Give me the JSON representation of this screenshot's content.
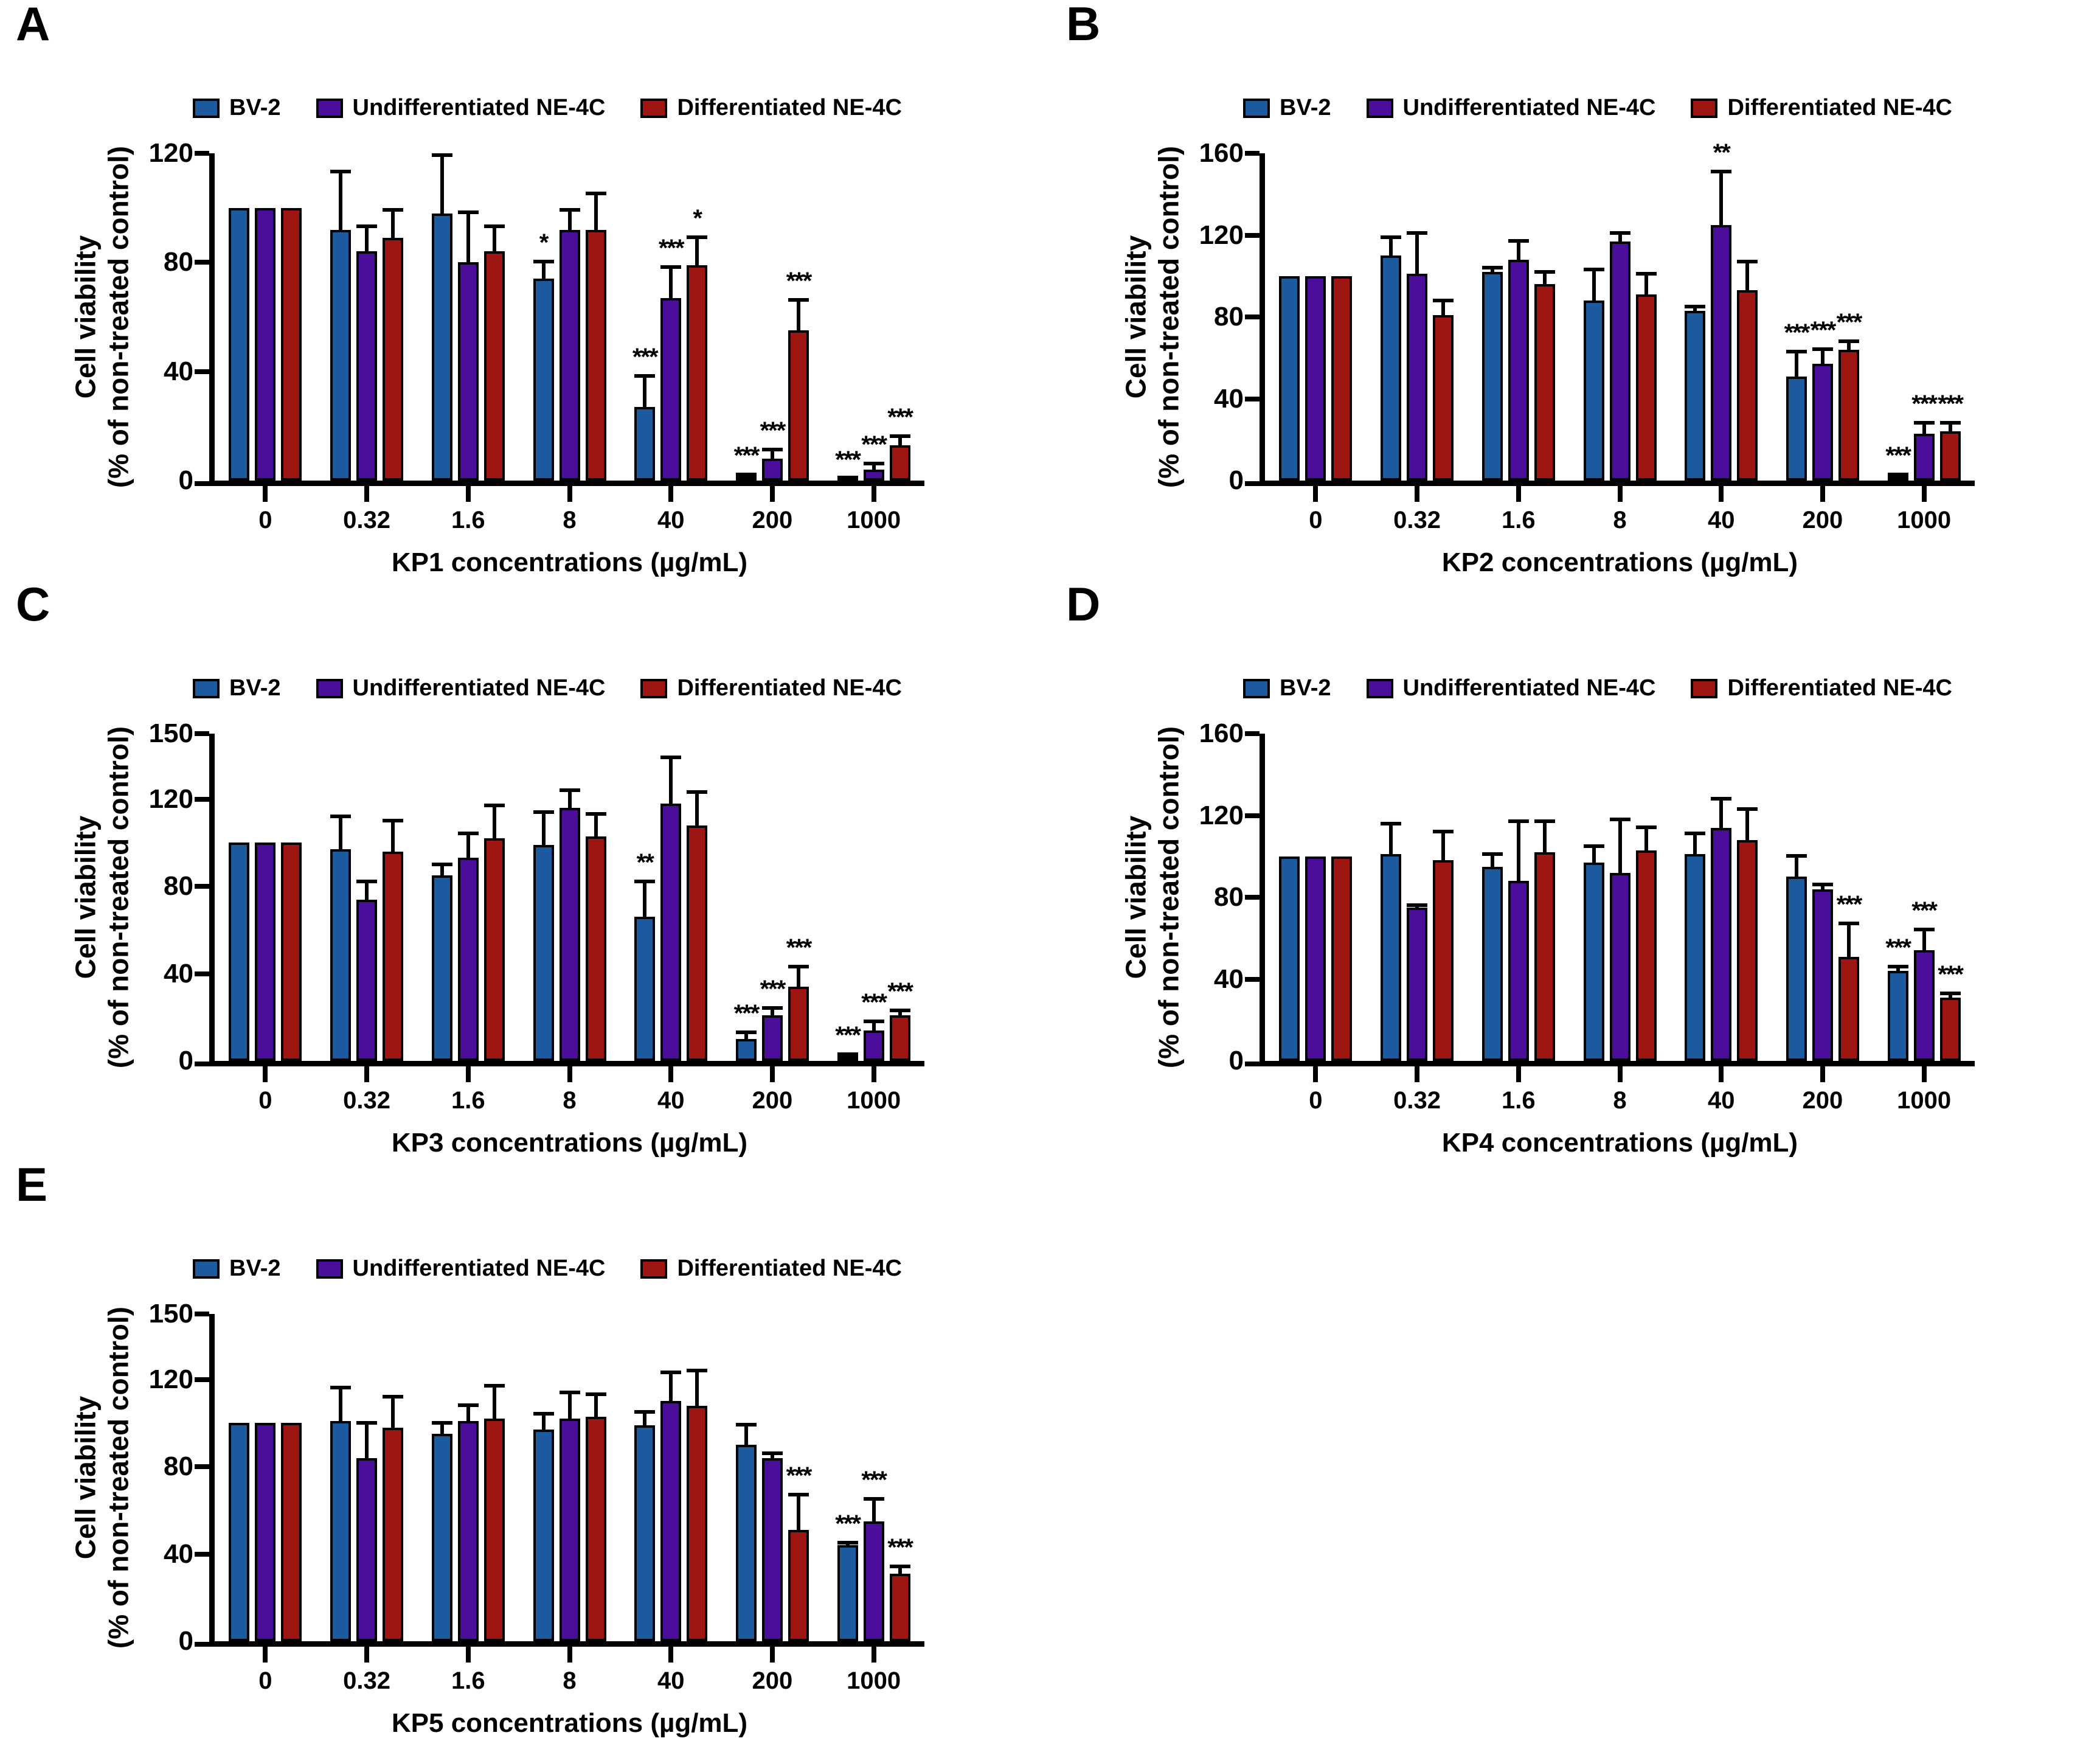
{
  "figure": {
    "background": "#ffffff",
    "text_color": "#000000",
    "bar_outline": "#000000"
  },
  "legend": {
    "position": "top",
    "items": [
      {
        "label": "BV-2",
        "color": "#1b5a9e"
      },
      {
        "label": "Undifferentiated NE-4C",
        "color": "#4a0e9b"
      },
      {
        "label": "Differentiated NE-4C",
        "color": "#9e1512"
      }
    ]
  },
  "ylabel": {
    "line1": "Cell viability",
    "line2": "(% of non-treated control)"
  },
  "chart_data": [
    {
      "letter": "A",
      "type": "bar",
      "xlabel": "KP1 concentrations (µg/mL)",
      "ylabel": "Cell viability (% of non-treated control)",
      "categories": [
        "0",
        "0.32",
        "1.6",
        "8",
        "40",
        "200",
        "1000"
      ],
      "ylim": [
        0,
        120
      ],
      "yticks": [
        0,
        40,
        80,
        120
      ],
      "grid": false,
      "series": [
        {
          "name": "BV-2",
          "color": "#1b5a9e",
          "values": [
            100,
            92,
            98,
            74,
            27,
            1.5,
            0.8
          ],
          "sd": [
            0,
            22,
            22,
            7,
            12,
            1.5,
            0.5
          ],
          "sig": [
            "",
            "",
            "",
            "*",
            "***",
            "***",
            "***"
          ]
        },
        {
          "name": "Undifferentiated NE-4C",
          "color": "#4a0e9b",
          "values": [
            100,
            84,
            80,
            92,
            67,
            8,
            4
          ],
          "sd": [
            0,
            10,
            19,
            8,
            12,
            4,
            3
          ],
          "sig": [
            "",
            "",
            "",
            "",
            "***",
            "***",
            "***"
          ]
        },
        {
          "name": "Differentiated NE-4C",
          "color": "#9e1512",
          "values": [
            100,
            89,
            84,
            92,
            79,
            55,
            13
          ],
          "sd": [
            0,
            11,
            10,
            14,
            11,
            12,
            4
          ],
          "sig": [
            "",
            "",
            "",
            "",
            "*",
            "***",
            "***"
          ]
        }
      ]
    },
    {
      "letter": "B",
      "type": "bar",
      "xlabel": "KP2 concentrations (µg/mL)",
      "ylabel": "Cell viability (% of non-treated control)",
      "categories": [
        "0",
        "0.32",
        "1.6",
        "8",
        "40",
        "200",
        "1000"
      ],
      "ylim": [
        0,
        160
      ],
      "yticks": [
        0,
        40,
        80,
        120,
        160
      ],
      "grid": false,
      "series": [
        {
          "name": "BV-2",
          "color": "#1b5a9e",
          "values": [
            100,
            110,
            102,
            88,
            83,
            51,
            2
          ],
          "sd": [
            0,
            10,
            3,
            16,
            3,
            13,
            2
          ],
          "sig": [
            "",
            "",
            "",
            "",
            "",
            "***",
            "***"
          ]
        },
        {
          "name": "Undifferentiated NE-4C",
          "color": "#4a0e9b",
          "values": [
            100,
            101,
            108,
            117,
            125,
            57,
            23
          ],
          "sd": [
            0,
            21,
            10,
            5,
            27,
            8,
            6
          ],
          "sig": [
            "",
            "",
            "",
            "",
            "**",
            "***",
            "***"
          ]
        },
        {
          "name": "Differentiated NE-4C",
          "color": "#9e1512",
          "values": [
            100,
            81,
            96,
            91,
            93,
            64,
            24
          ],
          "sd": [
            0,
            8,
            7,
            11,
            15,
            5,
            5
          ],
          "sig": [
            "",
            "",
            "",
            "",
            "",
            "***",
            "***"
          ]
        }
      ]
    },
    {
      "letter": "C",
      "type": "bar",
      "xlabel": "KP3 concentrations (µg/mL)",
      "ylabel": "Cell viability (% of non-treated control)",
      "categories": [
        "0",
        "0.32",
        "1.6",
        "8",
        "40",
        "200",
        "1000"
      ],
      "ylim": [
        0,
        150
      ],
      "yticks": [
        0,
        40,
        80,
        120,
        150
      ],
      "grid": false,
      "series": [
        {
          "name": "BV-2",
          "color": "#1b5a9e",
          "values": [
            100,
            97,
            85,
            99,
            66,
            10,
            2
          ],
          "sd": [
            0,
            16,
            6,
            16,
            17,
            4,
            2
          ],
          "sig": [
            "",
            "",
            "",
            "",
            "**",
            "***",
            "***"
          ]
        },
        {
          "name": "Undifferentiated NE-4C",
          "color": "#4a0e9b",
          "values": [
            100,
            74,
            93,
            116,
            118,
            21,
            14
          ],
          "sd": [
            0,
            9,
            12,
            9,
            22,
            4,
            5
          ],
          "sig": [
            "",
            "",
            "",
            "",
            "",
            "***",
            "***"
          ]
        },
        {
          "name": "Differentiated NE-4C",
          "color": "#9e1512",
          "values": [
            100,
            96,
            102,
            103,
            108,
            34,
            21
          ],
          "sd": [
            0,
            15,
            16,
            11,
            16,
            10,
            3
          ],
          "sig": [
            "",
            "",
            "",
            "",
            "",
            "***",
            "***"
          ]
        }
      ]
    },
    {
      "letter": "D",
      "type": "bar",
      "xlabel": "KP4 concentrations (µg/mL)",
      "ylabel": "Cell viability (% of non-treated control)",
      "categories": [
        "0",
        "0.32",
        "1.6",
        "8",
        "40",
        "200",
        "1000"
      ],
      "ylim": [
        0,
        160
      ],
      "yticks": [
        0,
        40,
        80,
        120,
        160
      ],
      "grid": false,
      "series": [
        {
          "name": "BV-2",
          "color": "#1b5a9e",
          "values": [
            100,
            101,
            95,
            97,
            101,
            90,
            44
          ],
          "sd": [
            0,
            16,
            7,
            9,
            11,
            11,
            3
          ],
          "sig": [
            "",
            "",
            "",
            "",
            "",
            "",
            "***"
          ]
        },
        {
          "name": "Undifferentiated NE-4C",
          "color": "#4a0e9b",
          "values": [
            100,
            75,
            88,
            92,
            114,
            84,
            54
          ],
          "sd": [
            0,
            2,
            30,
            27,
            15,
            3,
            11
          ],
          "sig": [
            "",
            "",
            "",
            "",
            "",
            "",
            "***"
          ]
        },
        {
          "name": "Differentiated NE-4C",
          "color": "#9e1512",
          "values": [
            100,
            98,
            102,
            103,
            108,
            51,
            31
          ],
          "sd": [
            0,
            15,
            16,
            12,
            16,
            17,
            3
          ],
          "sig": [
            "",
            "",
            "",
            "",
            "",
            "***",
            "***"
          ]
        }
      ]
    },
    {
      "letter": "E",
      "type": "bar",
      "xlabel": "KP5 concentrations (µg/mL)",
      "ylabel": "Cell viability (% of non-treated control)",
      "categories": [
        "0",
        "0.32",
        "1.6",
        "8",
        "40",
        "200",
        "1000"
      ],
      "ylim": [
        0,
        150
      ],
      "yticks": [
        0,
        40,
        80,
        120,
        150
      ],
      "grid": false,
      "series": [
        {
          "name": "BV-2",
          "color": "#1b5a9e",
          "values": [
            100,
            101,
            95,
            97,
            99,
            90,
            44
          ],
          "sd": [
            0,
            16,
            6,
            8,
            7,
            10,
            2
          ],
          "sig": [
            "",
            "",
            "",
            "",
            "",
            "",
            "***"
          ]
        },
        {
          "name": "Undifferentiated NE-4C",
          "color": "#4a0e9b",
          "values": [
            100,
            84,
            101,
            102,
            110,
            84,
            55
          ],
          "sd": [
            0,
            17,
            8,
            13,
            14,
            3,
            11
          ],
          "sig": [
            "",
            "",
            "",
            "",
            "",
            "",
            "***"
          ]
        },
        {
          "name": "Differentiated NE-4C",
          "color": "#9e1512",
          "values": [
            100,
            98,
            102,
            103,
            108,
            51,
            31
          ],
          "sd": [
            0,
            15,
            16,
            11,
            17,
            17,
            4
          ],
          "sig": [
            "",
            "",
            "",
            "",
            "",
            "***",
            "***"
          ]
        }
      ]
    }
  ]
}
